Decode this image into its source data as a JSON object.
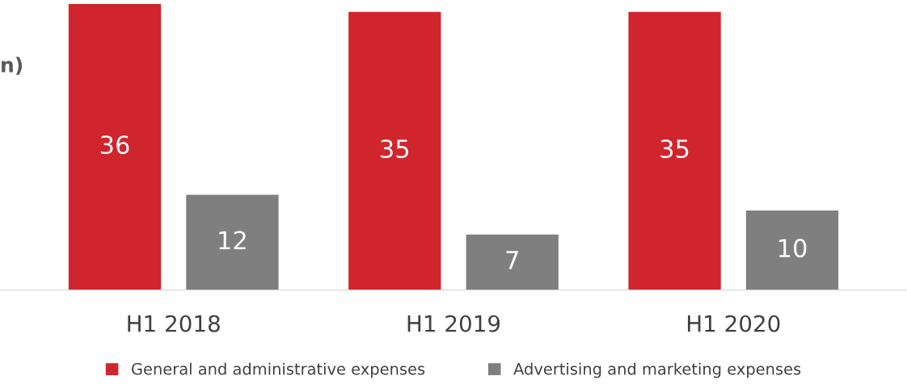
{
  "chart_data": {
    "type": "bar",
    "categories": [
      "H1 2018",
      "H1 2019",
      "H1 2020"
    ],
    "series": [
      {
        "name": "General and administrative expenses",
        "color": "#d0252d",
        "values": [
          36,
          35,
          35
        ]
      },
      {
        "name": "Advertising and marketing expenses",
        "color": "#7f7f7f",
        "values": [
          12,
          7,
          10
        ]
      }
    ],
    "ylim": [
      0,
      36
    ],
    "data_labels": true,
    "legend": "bottom",
    "grid": false,
    "annotations": [
      "n)"
    ]
  }
}
